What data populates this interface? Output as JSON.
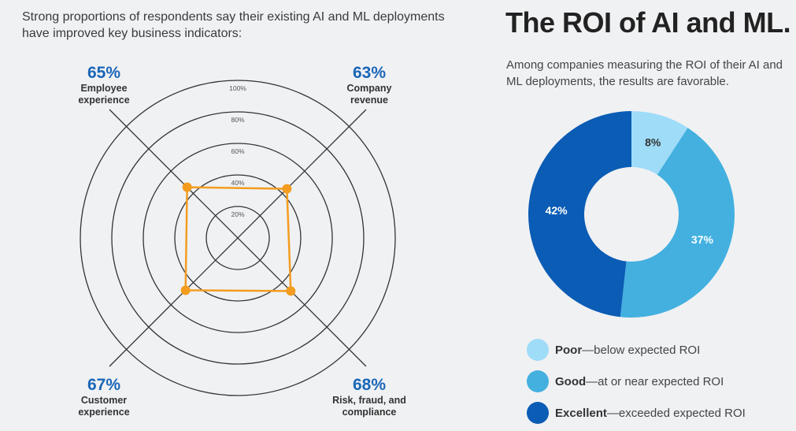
{
  "intro": "Strong proportions of respondents say their existing AI and ML deployments have improved key business indicators:",
  "title": "The ROI of AI and ML.",
  "subtitle": "Among companies measuring the ROI of their AI and ML deployments, the results are favorable.",
  "colors": {
    "accent": "#f39c1f",
    "pct_blue": "#1a66b8",
    "poor": "#9edcf8",
    "good": "#43b0e0",
    "excellent": "#0a5cb5"
  },
  "chart_data": [
    {
      "type": "radar",
      "title": "",
      "categories": [
        "Employee experience",
        "Company revenue",
        "Risk, fraud, and compliance",
        "Customer experience"
      ],
      "values": [
        65,
        63,
        68,
        67
      ],
      "labels": [
        "65%",
        "63%",
        "68%",
        "67%"
      ],
      "ticks": [
        "20%",
        "40%",
        "60%",
        "80%",
        "100%"
      ],
      "range": [
        0,
        100
      ]
    },
    {
      "type": "pie",
      "donut": true,
      "categories": [
        "Poor",
        "Good",
        "Excellent"
      ],
      "values": [
        8,
        37,
        42
      ],
      "labels": [
        "8%",
        "37%",
        "42%"
      ],
      "legend": [
        {
          "bold": "Poor",
          "text": "—below expected ROI"
        },
        {
          "bold": "Good",
          "text": "—at or near expected ROI"
        },
        {
          "bold": "Excellent",
          "text": "—exceeded expected ROI"
        }
      ],
      "legend_position": "bottom"
    }
  ]
}
